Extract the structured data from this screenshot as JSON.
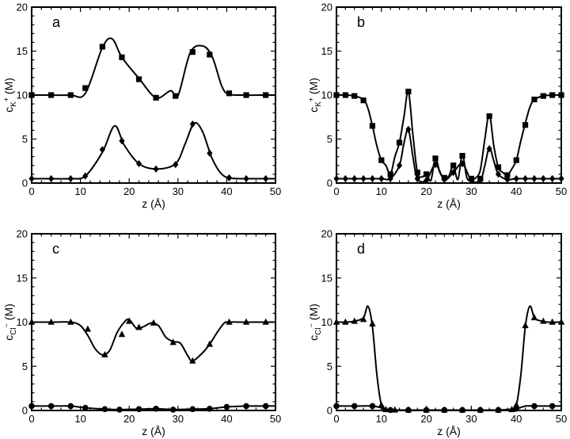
{
  "chart_data": [
    {
      "type": "line",
      "panel_label": "a",
      "xlabel": "z (Å)",
      "ylabel": "c_K+ (M)",
      "ylabel_base": "c",
      "ylabel_sub": "K",
      "ylabel_sup": "+",
      "ylabel_unit": "(M)",
      "xlim": [
        0,
        50
      ],
      "ylim": [
        0,
        20
      ],
      "xticks": [
        0,
        10,
        20,
        30,
        40,
        50
      ],
      "yticks": [
        0,
        5,
        10,
        15,
        20
      ],
      "series": [
        {
          "marker": "square",
          "x": [
            0,
            4,
            8,
            11,
            14.5,
            16.5,
            18.5,
            22,
            25.5,
            28.5,
            30,
            32.5,
            35,
            37,
            39,
            40.5,
            44,
            48,
            50
          ],
          "y": [
            10,
            10,
            10,
            10.2,
            15.4,
            16.4,
            14.3,
            11.9,
            9.7,
            10.5,
            9.9,
            14.8,
            15.6,
            14.4,
            11,
            10.1,
            10,
            10,
            10
          ],
          "markers_x": [
            0,
            4,
            8,
            11,
            14.5,
            18.5,
            22,
            25.5,
            29.5,
            33,
            36.5,
            40.5,
            44,
            48
          ],
          "markers_y": [
            10,
            10,
            10,
            10.8,
            15.5,
            14.3,
            11.8,
            9.7,
            9.9,
            14.9,
            14.6,
            10.2,
            10,
            10
          ]
        },
        {
          "marker": "diamond",
          "x": [
            0,
            4,
            8,
            11,
            14.5,
            17,
            19,
            22,
            25.5,
            29.5,
            31.5,
            33.3,
            35,
            37,
            39,
            41,
            44,
            48,
            50
          ],
          "y": [
            0.5,
            0.5,
            0.5,
            0.8,
            3.5,
            6.5,
            4.3,
            2.2,
            1.6,
            2.2,
            4.5,
            6.8,
            5.9,
            2.8,
            1.0,
            0.55,
            0.5,
            0.5,
            0.5
          ],
          "markers_x": [
            0,
            4,
            8,
            11,
            14.5,
            18.5,
            22,
            25.5,
            29.5,
            33,
            36.5,
            40.5,
            44,
            48
          ],
          "markers_y": [
            0.5,
            0.5,
            0.5,
            0.8,
            3.8,
            4.8,
            2.2,
            1.6,
            2.1,
            6.7,
            3.4,
            0.6,
            0.5,
            0.5
          ]
        }
      ]
    },
    {
      "type": "line",
      "panel_label": "b",
      "xlabel": "z (Å)",
      "ylabel": "c_K+ (M)",
      "ylabel_base": "c",
      "ylabel_sub": "K",
      "ylabel_sup": "+",
      "ylabel_unit": "(M)",
      "xlim": [
        0,
        50
      ],
      "ylim": [
        0,
        20
      ],
      "xticks": [
        0,
        10,
        20,
        30,
        40,
        50
      ],
      "yticks": [
        0,
        5,
        10,
        15,
        20
      ],
      "series": [
        {
          "marker": "square",
          "x": [
            0,
            2,
            4,
            6,
            7,
            8,
            9,
            10,
            11,
            12,
            13,
            14,
            15,
            16,
            17,
            18,
            19,
            20,
            21,
            22,
            23,
            24,
            25,
            26,
            27,
            28,
            29,
            30,
            31,
            32,
            33,
            34,
            35,
            36,
            37,
            38,
            39,
            40,
            41,
            42,
            43,
            44,
            46,
            48,
            50
          ],
          "y": [
            10,
            10,
            9.9,
            9.5,
            8.5,
            6.5,
            4.2,
            2.6,
            2.0,
            1.0,
            3.0,
            4.6,
            7.5,
            10.4,
            5.5,
            1.2,
            0.7,
            1.0,
            0.3,
            2.8,
            1.2,
            0.5,
            0.8,
            2.0,
            0.4,
            3.2,
            0.6,
            0.4,
            0.6,
            1.5,
            5.0,
            7.8,
            4.2,
            1.8,
            1.2,
            0.9,
            1.6,
            2.6,
            4.8,
            6.8,
            8.6,
            9.5,
            9.9,
            10,
            10
          ],
          "markers_x": [
            0,
            2,
            4,
            6,
            8,
            10,
            12,
            14,
            16,
            18,
            20,
            22,
            24,
            26,
            28,
            30,
            32,
            34,
            36,
            38,
            40,
            42,
            44,
            46,
            48,
            50
          ],
          "markers_y": [
            10,
            10,
            9.9,
            9.4,
            6.5,
            2.6,
            1.0,
            4.6,
            10.4,
            1.2,
            1.0,
            2.8,
            0.6,
            2.0,
            3.1,
            0.5,
            0.5,
            7.6,
            1.8,
            0.9,
            2.6,
            6.6,
            9.5,
            9.9,
            10,
            10
          ]
        },
        {
          "marker": "diamond",
          "x": [
            0,
            4,
            8,
            10,
            12,
            14,
            15,
            16,
            17,
            18,
            20,
            22,
            24,
            26,
            28,
            30,
            32,
            33,
            34,
            35,
            36,
            38,
            40,
            44,
            50
          ],
          "y": [
            0.5,
            0.5,
            0.5,
            0.5,
            0.5,
            2.0,
            4.5,
            6.1,
            3.0,
            0.5,
            0.3,
            2.1,
            0.4,
            1.2,
            2.2,
            0.3,
            0.3,
            2.0,
            4.0,
            2.5,
            1.0,
            0.4,
            0.5,
            0.5,
            0.5
          ],
          "markers_x": [
            0,
            2,
            4,
            6,
            8,
            10,
            12,
            14,
            16,
            18,
            20,
            22,
            24,
            26,
            28,
            30,
            32,
            34,
            36,
            38,
            40,
            42,
            44,
            46,
            48,
            50
          ],
          "markers_y": [
            0.5,
            0.5,
            0.5,
            0.5,
            0.5,
            0.5,
            0.5,
            2.0,
            6.1,
            0.5,
            0.3,
            2.1,
            0.4,
            1.2,
            2.2,
            0.3,
            0.3,
            3.9,
            1.0,
            0.4,
            0.5,
            0.5,
            0.5,
            0.5,
            0.5,
            0.5
          ]
        }
      ]
    },
    {
      "type": "line",
      "panel_label": "c",
      "xlabel": "z (Å)",
      "ylabel": "c_Cl− (M)",
      "ylabel_base": "c",
      "ylabel_sub": "Cl",
      "ylabel_sup": "−",
      "ylabel_unit": "(M)",
      "xlim": [
        0,
        50
      ],
      "ylim": [
        0,
        20
      ],
      "xticks": [
        0,
        10,
        20,
        30,
        40,
        50
      ],
      "yticks": [
        0,
        5,
        10,
        15,
        20
      ],
      "series": [
        {
          "marker": "triangle",
          "x": [
            0,
            4,
            8,
            10,
            11.5,
            13,
            14.5,
            16,
            17.5,
            19,
            20,
            21.5,
            23,
            24.5,
            26,
            27.5,
            29,
            30.5,
            32,
            33,
            35,
            36.5,
            38,
            39.5,
            40.5,
            44,
            48,
            50
          ],
          "y": [
            10,
            10,
            10,
            9.6,
            8.5,
            7.0,
            6.3,
            6.8,
            8.8,
            10.0,
            10.3,
            9.3,
            9.5,
            9.9,
            9.6,
            8.3,
            7.8,
            7.6,
            6.2,
            5.6,
            6.5,
            7.5,
            8.8,
            9.9,
            10,
            10,
            10,
            10
          ],
          "markers_x": [
            0,
            4,
            8,
            11.5,
            15,
            18.5,
            20,
            22,
            25,
            29,
            33,
            36.5,
            40.5,
            44,
            48
          ],
          "markers_y": [
            10,
            10,
            10,
            9.2,
            6.3,
            8.6,
            10.1,
            9.4,
            9.9,
            7.7,
            5.6,
            7.5,
            10,
            10,
            10
          ]
        },
        {
          "marker": "circle",
          "x": [
            0,
            4,
            8,
            11,
            15,
            18,
            22,
            25.5,
            29,
            33,
            36.5,
            40,
            44,
            48,
            50
          ],
          "y": [
            0.5,
            0.5,
            0.5,
            0.3,
            0.15,
            0.1,
            0.15,
            0.2,
            0.1,
            0.15,
            0.2,
            0.4,
            0.5,
            0.5,
            0.5
          ],
          "markers_x": [
            0,
            4,
            8,
            11,
            15,
            18,
            22,
            25.5,
            29,
            33,
            36.5,
            40,
            44,
            48
          ],
          "markers_y": [
            0.5,
            0.5,
            0.5,
            0.3,
            0.15,
            0.1,
            0.15,
            0.2,
            0.1,
            0.15,
            0.2,
            0.4,
            0.5,
            0.5
          ]
        }
      ]
    },
    {
      "type": "line",
      "panel_label": "d",
      "xlabel": "z (Å)",
      "ylabel": "c_Cl− (M)",
      "ylabel_base": "c",
      "ylabel_sub": "Cl",
      "ylabel_sup": "−",
      "ylabel_unit": "(M)",
      "xlim": [
        0,
        50
      ],
      "ylim": [
        0,
        20
      ],
      "xticks": [
        0,
        10,
        20,
        30,
        40,
        50
      ],
      "yticks": [
        0,
        5,
        10,
        15,
        20
      ],
      "series": [
        {
          "marker": "triangle",
          "x": [
            0,
            2,
            4,
            6,
            7,
            8,
            9,
            10,
            11,
            13,
            16,
            20,
            24,
            28,
            32,
            36,
            39,
            40,
            41,
            42,
            43,
            44,
            45,
            47,
            50
          ],
          "y": [
            10,
            10,
            10.1,
            10.5,
            11.8,
            9.5,
            4.0,
            0.6,
            0.1,
            0.05,
            0.05,
            0.05,
            0.05,
            0.05,
            0.05,
            0.05,
            0.1,
            0.6,
            4.0,
            9.5,
            11.8,
            10.5,
            10.2,
            10,
            10
          ],
          "markers_x": [
            0,
            2,
            4,
            6,
            8,
            10,
            11,
            13,
            16,
            20,
            24,
            28,
            32,
            36,
            39,
            40,
            42,
            44,
            46,
            48,
            50
          ],
          "markers_y": [
            10,
            10,
            10.1,
            10.3,
            9.8,
            0.6,
            0.1,
            0.05,
            0.05,
            0.05,
            0.05,
            0.05,
            0.05,
            0.05,
            0.1,
            0.6,
            9.6,
            10.5,
            10.1,
            10,
            10
          ]
        },
        {
          "marker": "circle",
          "x": [
            0,
            4,
            8,
            10,
            12,
            16,
            20,
            24,
            28,
            32,
            36,
            40,
            42,
            44,
            48,
            50
          ],
          "y": [
            0.5,
            0.5,
            0.5,
            0.3,
            0.05,
            0.05,
            0.05,
            0.05,
            0.05,
            0.05,
            0.05,
            0.2,
            0.5,
            0.5,
            0.5,
            0.5
          ],
          "markers_x": [
            0,
            4,
            8,
            12,
            16,
            20,
            24,
            28,
            32,
            36,
            40,
            44,
            48
          ],
          "markers_y": [
            0.5,
            0.5,
            0.5,
            0.05,
            0.05,
            0.05,
            0.05,
            0.05,
            0.05,
            0.05,
            0.2,
            0.5,
            0.5
          ]
        }
      ]
    }
  ]
}
